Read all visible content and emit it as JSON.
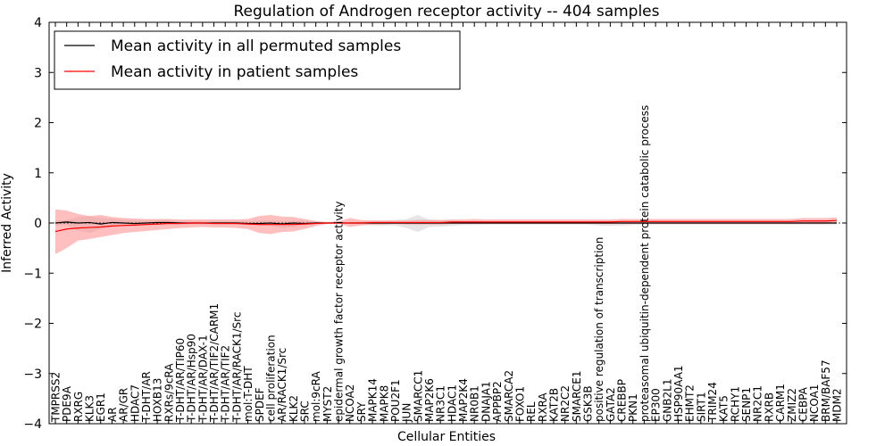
{
  "chart_data": {
    "type": "line",
    "title": "Regulation of Androgen receptor activity -- 404 samples",
    "xlabel": "Cellular Entities",
    "ylabel": "Inferred Activity",
    "ylim": [
      -4,
      4
    ],
    "yticks": [
      -4,
      -3,
      -2,
      -1,
      0,
      1,
      2,
      3,
      4
    ],
    "ytick_labels": [
      "−4",
      "−3",
      "−2",
      "−1",
      "0",
      "1",
      "2",
      "3",
      "4"
    ],
    "legend_position": "top-left",
    "categories": [
      "TMPRSS2",
      "PDE9A",
      "RXRG",
      "KLK3",
      "EGR1",
      "AR",
      "AR/GR",
      "HDAC7",
      "T-DHT/AR",
      "HOXB13",
      "RXRs/9cRA",
      "T-DHT/AR/TIP60",
      "T-DHT/AR/Hsp90",
      "T-DHT/AR/DAX-1",
      "T-DHT/AR/TIF2/CARM1",
      "T-DHT/AR/TIF2",
      "T-DHT/AR/RACK1/Src",
      "mol:T-DHT",
      "SPDEF",
      "cell proliferation",
      "AR/RACK1/Src",
      "KLK2",
      "SRC",
      "mol:9cRA",
      "MYST2",
      "epidermal growth factor receptor activity",
      "NCOA2",
      "SRY",
      "MAPK14",
      "MAPK8",
      "POU2F1",
      "JUN",
      "SMARCC1",
      "MAP2K6",
      "NR3C1",
      "HDAC1",
      "MAP2K4",
      "NR0B1",
      "DNAJA1",
      "APPBP2",
      "SMARCA2",
      "FOXO1",
      "REL",
      "RXRA",
      "KAT2B",
      "NR2C2",
      "SMARCE1",
      "GSK3B",
      "positive regulation of transcription",
      "GATA2",
      "CREBBP",
      "PKN1",
      "proteasomal ubiquitin-dependent protein catabolic process",
      "EP300",
      "GNB2L1",
      "HSP90AA1",
      "EHMT2",
      "SIRT1",
      "TRIM24",
      "KAT5",
      "RCHY1",
      "SENP1",
      "NR2C1",
      "RXRB",
      "CARM1",
      "ZMIZ2",
      "CEBPA",
      "NCOA1",
      "BRM/BAF57",
      "MDM2"
    ],
    "series": [
      {
        "name": "Mean activity in all permuted samples",
        "color": "#000000",
        "values": [
          0.0,
          0.02,
          0.0,
          0.01,
          -0.02,
          0.01,
          0.0,
          -0.01,
          0.0,
          0.01,
          0.01,
          0.0,
          0.0,
          0.0,
          0.0,
          0.0,
          0.0,
          -0.01,
          -0.01,
          0.0,
          -0.02,
          0.0,
          -0.01,
          0.0,
          0.0,
          0.0,
          0.0,
          0.0,
          0.0,
          0.0,
          0.0,
          0.0,
          0.0,
          0.0,
          0.0,
          0.0,
          0.0,
          0.0,
          0.0,
          0.0,
          0.0,
          0.0,
          0.0,
          0.0,
          0.0,
          0.0,
          0.0,
          0.0,
          0.0,
          0.0,
          0.0,
          0.0,
          0.0,
          0.0,
          0.0,
          0.0,
          0.0,
          0.0,
          0.0,
          0.0,
          0.0,
          0.0,
          0.0,
          0.0,
          0.0,
          0.0,
          0.0,
          0.0,
          0.0,
          0.0
        ],
        "band_color": "#c8c8c8",
        "band_lower": [
          -0.05,
          -0.04,
          -0.15,
          -0.2,
          -0.12,
          -0.08,
          -0.06,
          -0.07,
          -0.05,
          -0.04,
          -0.03,
          -0.04,
          -0.03,
          -0.03,
          -0.03,
          -0.03,
          -0.03,
          -0.04,
          -0.05,
          -0.06,
          -0.1,
          -0.08,
          -0.05,
          -0.02,
          -0.01,
          -0.01,
          -0.01,
          -0.03,
          -0.05,
          -0.05,
          -0.05,
          -0.1,
          -0.18,
          -0.08,
          -0.07,
          -0.06,
          -0.04,
          -0.04,
          -0.03,
          -0.03,
          -0.03,
          -0.03,
          -0.03,
          -0.03,
          -0.03,
          -0.03,
          -0.03,
          -0.03,
          -0.05,
          -0.06,
          -0.05,
          -0.04,
          -0.03,
          -0.03,
          -0.03,
          -0.03,
          -0.03,
          -0.03,
          -0.03,
          -0.03,
          -0.03,
          -0.03,
          -0.03,
          -0.03,
          -0.03,
          -0.03,
          -0.03,
          -0.03,
          -0.03,
          -0.03
        ],
        "band_upper": [
          0.05,
          0.06,
          0.12,
          0.14,
          0.1,
          0.09,
          0.06,
          0.06,
          0.05,
          0.06,
          0.06,
          0.04,
          0.04,
          0.04,
          0.04,
          0.04,
          0.04,
          0.04,
          0.05,
          0.06,
          0.04,
          0.05,
          0.05,
          0.02,
          0.01,
          0.01,
          0.01,
          0.03,
          0.05,
          0.05,
          0.06,
          0.08,
          0.16,
          0.07,
          0.06,
          0.05,
          0.04,
          0.04,
          0.03,
          0.03,
          0.03,
          0.03,
          0.03,
          0.03,
          0.03,
          0.03,
          0.03,
          0.03,
          0.04,
          0.05,
          0.04,
          0.04,
          0.03,
          0.03,
          0.03,
          0.03,
          0.03,
          0.03,
          0.03,
          0.03,
          0.03,
          0.03,
          0.03,
          0.03,
          0.03,
          0.03,
          0.03,
          0.03,
          0.03,
          0.03
        ]
      },
      {
        "name": "Mean activity in patient samples",
        "color": "#ff0000",
        "values": [
          -0.17,
          -0.12,
          -0.1,
          -0.09,
          -0.08,
          -0.06,
          -0.05,
          -0.04,
          -0.03,
          -0.02,
          -0.01,
          -0.01,
          0.0,
          0.0,
          -0.01,
          -0.01,
          -0.01,
          -0.02,
          -0.03,
          -0.03,
          -0.03,
          -0.03,
          -0.02,
          -0.01,
          0.0,
          0.0,
          0.0,
          0.0,
          0.01,
          0.01,
          0.01,
          0.01,
          0.01,
          0.01,
          0.01,
          0.02,
          0.02,
          0.02,
          0.02,
          0.02,
          0.02,
          0.02,
          0.02,
          0.02,
          0.02,
          0.02,
          0.02,
          0.02,
          0.02,
          0.02,
          0.03,
          0.03,
          0.03,
          0.03,
          0.03,
          0.03,
          0.03,
          0.03,
          0.03,
          0.03,
          0.03,
          0.03,
          0.03,
          0.03,
          0.03,
          0.03,
          0.04,
          0.04,
          0.04,
          0.05
        ],
        "band_color": "#ff8080",
        "band_lower": [
          -0.62,
          -0.5,
          -0.35,
          -0.32,
          -0.28,
          -0.24,
          -0.2,
          -0.18,
          -0.16,
          -0.14,
          -0.12,
          -0.1,
          -0.09,
          -0.08,
          -0.09,
          -0.09,
          -0.1,
          -0.12,
          -0.2,
          -0.22,
          -0.18,
          -0.17,
          -0.12,
          -0.06,
          -0.02,
          -0.01,
          -0.08,
          -0.05,
          -0.03,
          -0.03,
          -0.02,
          -0.03,
          -0.03,
          -0.03,
          -0.03,
          -0.02,
          -0.02,
          -0.02,
          -0.02,
          -0.02,
          -0.02,
          -0.02,
          -0.02,
          -0.02,
          -0.02,
          -0.02,
          -0.02,
          -0.02,
          -0.02,
          -0.02,
          -0.02,
          -0.02,
          -0.02,
          -0.02,
          -0.02,
          -0.02,
          -0.02,
          -0.02,
          -0.02,
          -0.02,
          -0.02,
          -0.02,
          -0.02,
          -0.02,
          -0.02,
          -0.02,
          -0.02,
          -0.02,
          -0.02,
          -0.01
        ],
        "band_upper": [
          0.27,
          0.25,
          0.18,
          0.14,
          0.16,
          0.12,
          0.1,
          0.09,
          0.08,
          0.08,
          0.08,
          0.07,
          0.07,
          0.07,
          0.07,
          0.07,
          0.07,
          0.08,
          0.14,
          0.16,
          0.13,
          0.12,
          0.08,
          0.04,
          0.02,
          0.03,
          0.1,
          0.06,
          0.05,
          0.05,
          0.05,
          0.05,
          0.06,
          0.06,
          0.06,
          0.07,
          0.07,
          0.08,
          0.07,
          0.07,
          0.07,
          0.07,
          0.07,
          0.07,
          0.07,
          0.07,
          0.07,
          0.07,
          0.07,
          0.07,
          0.08,
          0.08,
          0.08,
          0.08,
          0.08,
          0.08,
          0.08,
          0.08,
          0.08,
          0.08,
          0.08,
          0.08,
          0.08,
          0.08,
          0.08,
          0.08,
          0.1,
          0.1,
          0.1,
          0.11
        ]
      }
    ]
  }
}
